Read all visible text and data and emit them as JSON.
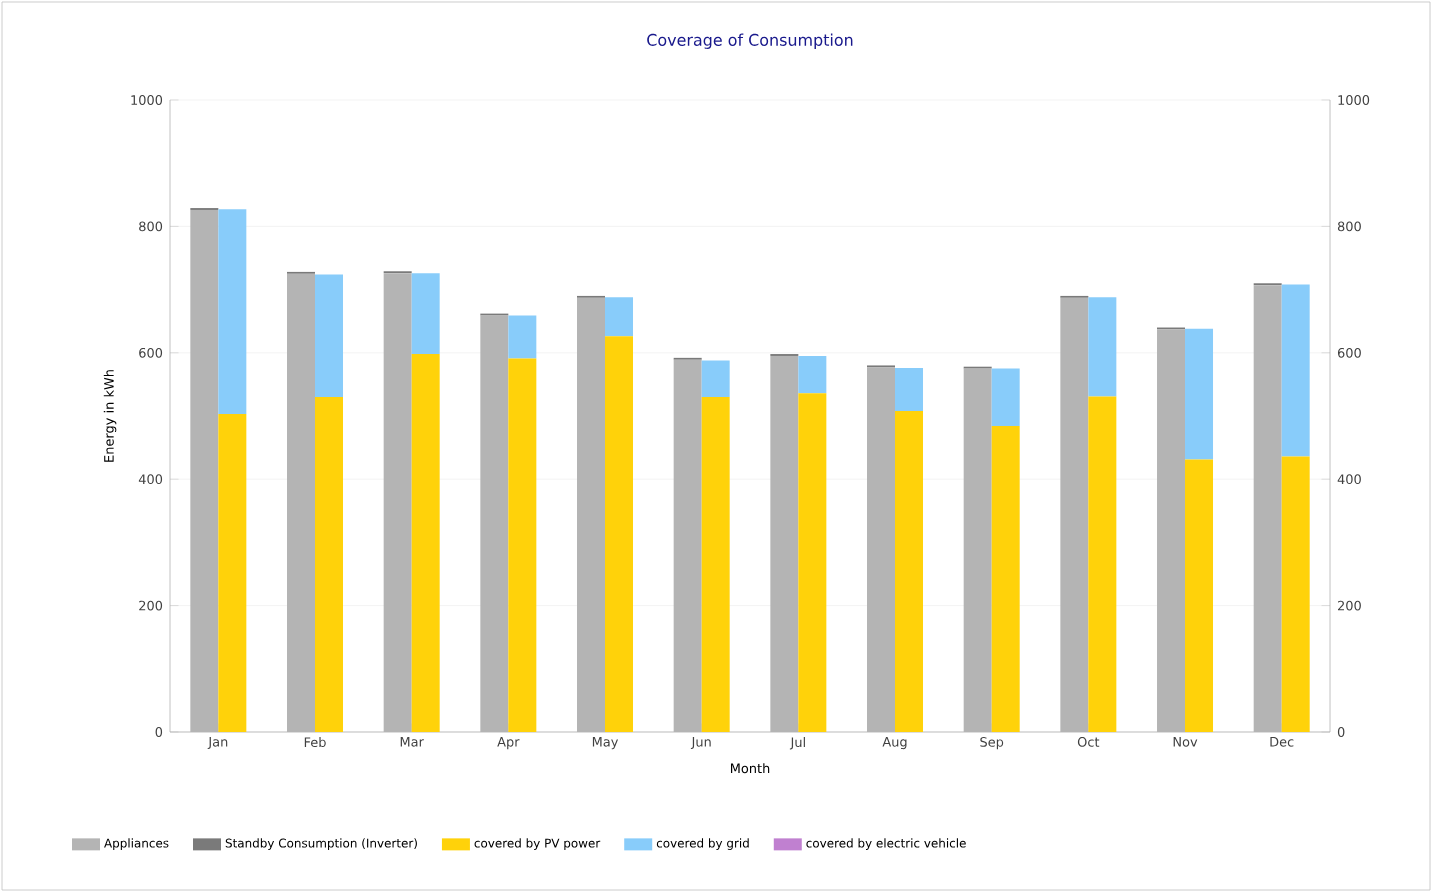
{
  "chart_data": {
    "type": "bar",
    "title": "Coverage of Consumption",
    "xlabel": "Month",
    "ylabel": "Energy in kWh",
    "categories": [
      "Jan",
      "Feb",
      "Mar",
      "Apr",
      "May",
      "Jun",
      "Jul",
      "Aug",
      "Sep",
      "Oct",
      "Nov",
      "Dec"
    ],
    "stacked": true,
    "series": [
      {
        "name": "Appliances",
        "color": "#b4b4b4",
        "values": [
          826,
          725,
          726,
          659,
          687,
          589,
          595,
          577,
          575,
          687,
          637,
          707
        ]
      },
      {
        "name": "Standby Consumption (Inverter)",
        "color": "#7a7a7a",
        "values": [
          3,
          3,
          3,
          3,
          3,
          3,
          3,
          3,
          3,
          3,
          3,
          3
        ]
      },
      {
        "name": "covered by PV power",
        "color": "#ffd20a",
        "axis": "y2",
        "values": [
          503,
          530,
          598,
          591,
          626,
          530,
          536,
          508,
          484,
          531,
          431,
          436
        ]
      },
      {
        "name": "covered by grid",
        "color": "#88ccfa",
        "axis": "y2",
        "values": [
          324,
          194,
          128,
          68,
          62,
          58,
          59,
          68,
          91,
          157,
          207,
          272
        ]
      },
      {
        "name": "covered by electric vehicle",
        "color": "#c080d0",
        "axis": "y2",
        "values": [
          0,
          0,
          0,
          0,
          0,
          0,
          0,
          0,
          0,
          0,
          0,
          0
        ]
      }
    ],
    "ylim": [
      0,
      1000
    ],
    "yticks": [
      0,
      200,
      400,
      600,
      800,
      1000
    ],
    "y2lim": [
      0,
      1000
    ],
    "y2ticks": [
      0,
      200,
      400,
      600,
      800,
      1000
    ],
    "grid": "y",
    "legend": "bottom"
  }
}
